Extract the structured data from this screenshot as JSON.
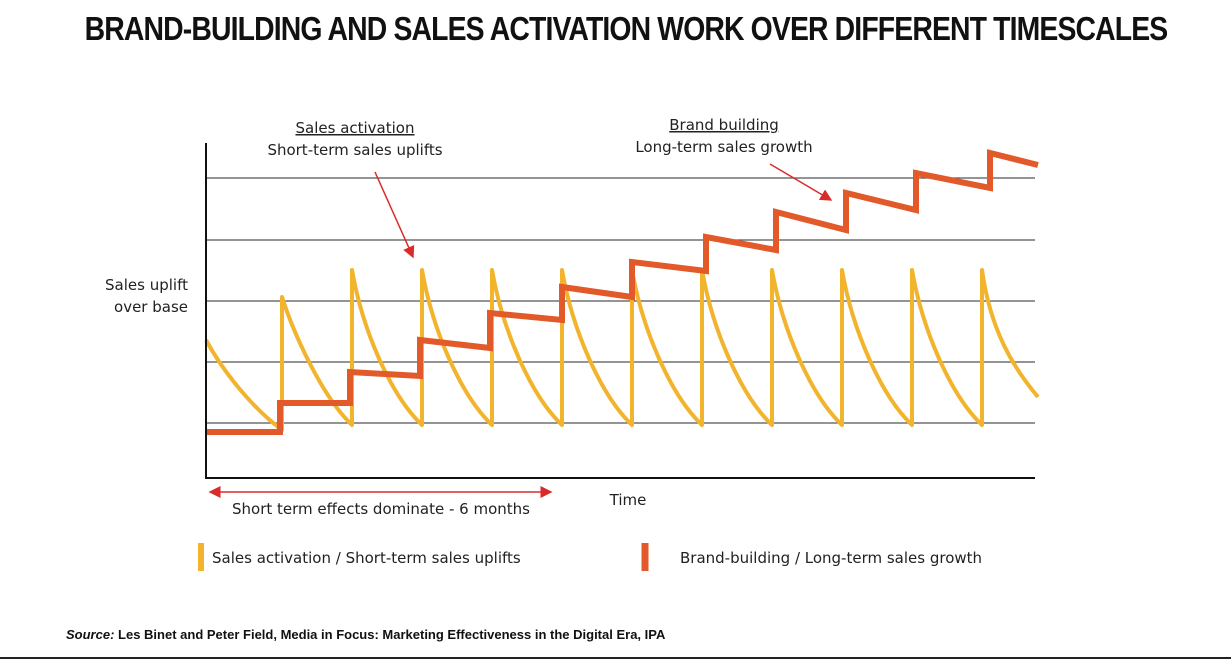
{
  "header": {
    "title": "BRAND-BUILDING AND SALES ACTIVATION WORK OVER DIFFERENT TIMESCALES"
  },
  "annotations": {
    "sales_activation": {
      "title": "Sales activation",
      "subtitle": "Short-term sales uplifts"
    },
    "brand_building": {
      "title": "Brand building",
      "subtitle": "Long-term sales growth"
    },
    "short_term": "Short term effects dominate - 6 months"
  },
  "axes": {
    "y_label": [
      "Sales uplift",
      "over base"
    ],
    "x_label": "Time"
  },
  "legend": [
    "Sales activation / Short-term sales uplifts",
    "Brand-building / Long-term sales growth"
  ],
  "source": {
    "label": "Source:",
    "text": "Les Binet and Peter Field, Media in Focus: Marketing Effectiveness in the Digital Era, IPA"
  }
}
